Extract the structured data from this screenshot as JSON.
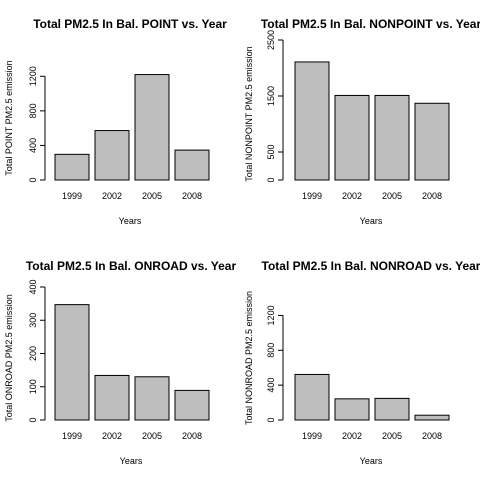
{
  "chart_data": [
    {
      "type": "bar",
      "title": "Total PM2.5 In Bal. POINT vs. Year",
      "xlabel": "Years",
      "ylabel": "Total POINT PM2.5 emission",
      "categories": [
        "1999",
        "2002",
        "2005",
        "2008"
      ],
      "values": [
        297,
        572,
        1220,
        346
      ],
      "ylim": [
        0,
        1400
      ],
      "yticks": [
        0,
        400,
        800,
        1200
      ],
      "grid": false,
      "bar_color": "#bebebe"
    },
    {
      "type": "bar",
      "title": "Total PM2.5 In Bal. NONPOINT vs. Year",
      "xlabel": "Years",
      "ylabel": "Total NONPOINT PM2.5 emission",
      "categories": [
        "1999",
        "2002",
        "2005",
        "2008"
      ],
      "values": [
        2108,
        1510,
        1510,
        1370
      ],
      "ylim": [
        0,
        2500
      ],
      "yticks": [
        0,
        500,
        1500,
        2500
      ],
      "grid": false,
      "bar_color": "#bebebe"
    },
    {
      "type": "bar",
      "title": "Total PM2.5 In Bal. ONROAD vs. Year",
      "xlabel": "Years",
      "ylabel": "Total ONROAD PM2.5 emission",
      "categories": [
        "1999",
        "2002",
        "2005",
        "2008"
      ],
      "values": [
        347,
        134,
        130,
        89
      ],
      "ylim": [
        0,
        400
      ],
      "yticks": [
        0,
        100,
        200,
        300,
        400
      ],
      "grid": false,
      "bar_color": "#bebebe"
    },
    {
      "type": "bar",
      "title": "Total PM2.5 In Bal. NONROAD vs. Year",
      "xlabel": "Years",
      "ylabel": "Total NONROAD PM2.5 emission",
      "categories": [
        "1999",
        "2002",
        "2005",
        "2008"
      ],
      "values": [
        523,
        243,
        248,
        55
      ],
      "ylim": [
        0,
        1400
      ],
      "yticks": [
        0,
        400,
        800,
        1200
      ],
      "grid": false,
      "bar_color": "#bebebe"
    }
  ]
}
